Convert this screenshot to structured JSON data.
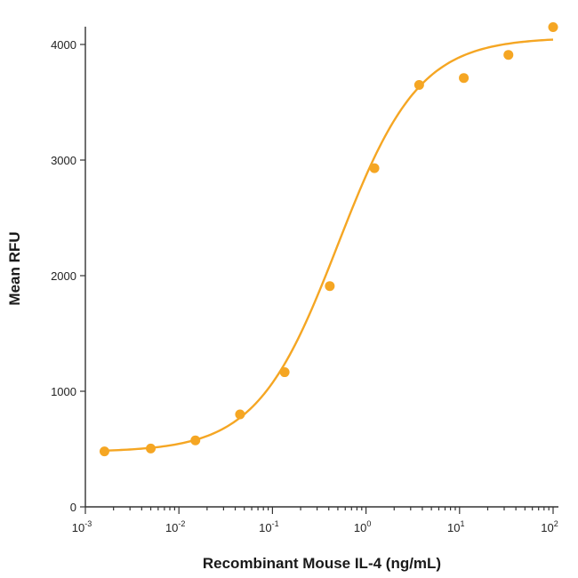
{
  "chart_data": {
    "type": "scatter",
    "title": "",
    "xlabel": "Recombinant Mouse IL-4 (ng/mL)",
    "ylabel": "Mean RFU",
    "xscale": "log10",
    "xlim": [
      0.001,
      100
    ],
    "ylim": [
      0,
      4000
    ],
    "x_ticks": [
      {
        "base": "10",
        "exp": "-3",
        "value": 0.001
      },
      {
        "base": "10",
        "exp": "-2",
        "value": 0.01
      },
      {
        "base": "10",
        "exp": "-1",
        "value": 0.1
      },
      {
        "base": "10",
        "exp": "0",
        "value": 1
      },
      {
        "base": "10",
        "exp": "1",
        "value": 10
      },
      {
        "base": "10",
        "exp": "2",
        "value": 100
      }
    ],
    "y_ticks": [
      "0",
      "1000",
      "2000",
      "3000",
      "4000"
    ],
    "series": [
      {
        "name": "Mean RFU",
        "color": "#F5A623",
        "x": [
          0.0016,
          0.005,
          0.015,
          0.045,
          0.135,
          0.41,
          1.23,
          3.7,
          11.1,
          33.3,
          100
        ],
        "y": [
          480,
          505,
          575,
          800,
          1165,
          1910,
          2930,
          3650,
          3710,
          3910,
          4150
        ]
      }
    ],
    "fit_curve": {
      "type": "4PL",
      "bottom": 475,
      "top": 4060,
      "ec50": 0.5,
      "hill": 1.0,
      "color": "#F5A623"
    },
    "grid": false,
    "legend": "none"
  }
}
